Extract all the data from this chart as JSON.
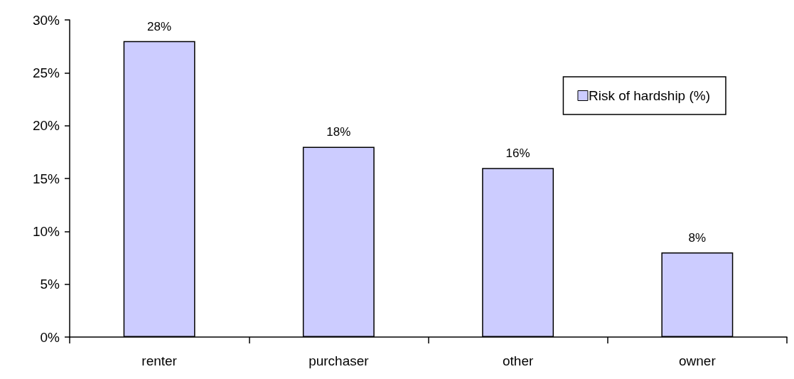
{
  "chart_data": {
    "type": "bar",
    "categories": [
      "renter",
      "purchaser",
      "other",
      "owner"
    ],
    "series": [
      {
        "name": "Risk of hardship (%)",
        "color": "#ccccff",
        "values": [
          28,
          18,
          16,
          8
        ],
        "value_labels": [
          "28%",
          "18%",
          "16%",
          "8%"
        ]
      }
    ],
    "ylim": [
      0,
      30
    ],
    "yticks": [
      {
        "value": 0,
        "label": "0%"
      },
      {
        "value": 5,
        "label": "5%"
      },
      {
        "value": 10,
        "label": "10%"
      },
      {
        "value": 15,
        "label": "15%"
      },
      {
        "value": 20,
        "label": "20%"
      },
      {
        "value": 25,
        "label": "25%"
      },
      {
        "value": 30,
        "label": "30%"
      }
    ],
    "grid": false,
    "legend": "top right"
  }
}
